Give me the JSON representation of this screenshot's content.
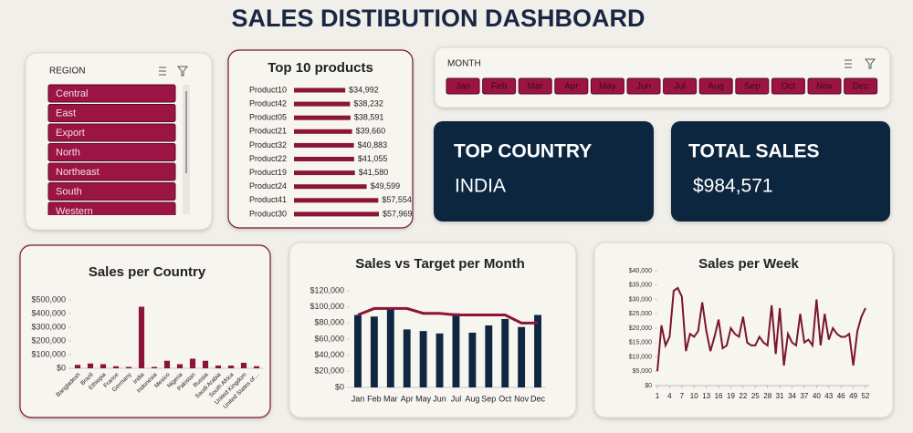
{
  "title": "SALES DISTIBUTION DASHBOARD",
  "region_slicer": {
    "title": "REGION",
    "items": [
      "Central",
      "East",
      "Export",
      "North",
      "Northeast",
      "South",
      "Western"
    ]
  },
  "month_slicer": {
    "title": "MONTH",
    "items": [
      "Jan",
      "Feb",
      "Mar",
      "Apr",
      "May",
      "Jun",
      "Jul",
      "Aug",
      "Sep",
      "Oct",
      "Nov",
      "Dec"
    ]
  },
  "kpis": [
    {
      "label": "TOP COUNTRY",
      "value": "INDIA"
    },
    {
      "label": "TOTAL SALES",
      "value": "$984,571"
    }
  ],
  "chart_data": [
    {
      "type": "hbar",
      "title": "Top 10 products",
      "categories": [
        "Product10",
        "Product42",
        "Product05",
        "Product21",
        "Product32",
        "Product22",
        "Product19",
        "Product24",
        "Product41",
        "Product30"
      ],
      "values": [
        34992,
        38232,
        38591,
        39660,
        40883,
        41055,
        41580,
        49599,
        57554,
        57969
      ],
      "value_labels": [
        "$34,992",
        "$38,232",
        "$38,591",
        "$39,660",
        "$40,883",
        "$41,055",
        "$41,580",
        "$49,599",
        "$57,554",
        "$57,969"
      ],
      "color": "#8b1538"
    },
    {
      "type": "bar",
      "title": "Sales per Country",
      "categories": [
        "Bangladesh",
        "Brazil",
        "Ethiopia",
        "France",
        "Germany",
        "India",
        "Indonesia",
        "Mexico",
        "Nigeria",
        "Pakistan",
        "Russia",
        "Saudi Arabia",
        "South Africa",
        "United Kingdom",
        "United States of…"
      ],
      "values": [
        25000,
        35000,
        30000,
        15000,
        10000,
        450000,
        10000,
        55000,
        30000,
        70000,
        55000,
        20000,
        20000,
        40000,
        15000
      ],
      "color": "#8b1538",
      "ylim": [
        0,
        500000
      ],
      "yticks": [
        {
          "value": 0,
          "label": "$0"
        },
        {
          "value": 100000,
          "label": "$100,000"
        },
        {
          "value": 200000,
          "label": "$200,000"
        },
        {
          "value": 300000,
          "label": "$300,000"
        },
        {
          "value": 400000,
          "label": "$400,000"
        },
        {
          "value": 500000,
          "label": "$500,000"
        }
      ]
    },
    {
      "type": "combo",
      "title": "Sales vs Target per Month",
      "categories": [
        "Jan",
        "Feb",
        "Mar",
        "Apr",
        "May",
        "Jun",
        "Jul",
        "Aug",
        "Sep",
        "Oct",
        "Nov",
        "Dec"
      ],
      "series": [
        {
          "type": "bar",
          "color": "#0f2741",
          "values": [
            90000,
            88000,
            97000,
            72000,
            70000,
            67000,
            92000,
            68000,
            77000,
            85000,
            75000,
            90000
          ]
        },
        {
          "type": "line",
          "color": "#8b1538",
          "values": [
            90000,
            98000,
            98000,
            98000,
            92000,
            92000,
            90000,
            90000,
            90000,
            90000,
            80000,
            80000
          ]
        }
      ],
      "ylim": [
        0,
        120000
      ],
      "yticks": [
        {
          "value": 0,
          "label": "$0"
        },
        {
          "value": 20000,
          "label": "$20,000"
        },
        {
          "value": 40000,
          "label": "$40,000"
        },
        {
          "value": 60000,
          "label": "$60,000"
        },
        {
          "value": 80000,
          "label": "$80,000"
        },
        {
          "value": 100000,
          "label": "$100,000"
        },
        {
          "value": 120000,
          "label": "$120,000"
        }
      ]
    },
    {
      "type": "line",
      "title": "Sales per Week",
      "x": [
        1,
        2,
        3,
        4,
        5,
        6,
        7,
        8,
        9,
        10,
        11,
        12,
        13,
        14,
        15,
        16,
        17,
        18,
        19,
        20,
        21,
        22,
        23,
        24,
        25,
        26,
        27,
        28,
        29,
        30,
        31,
        32,
        33,
        34,
        35,
        36,
        37,
        38,
        39,
        40,
        41,
        42,
        43,
        44,
        45,
        46,
        47,
        48,
        49,
        50,
        51,
        52
      ],
      "values": [
        5000,
        21000,
        14000,
        17000,
        33000,
        34000,
        31000,
        12000,
        18000,
        17000,
        19000,
        29000,
        19000,
        12000,
        17000,
        23000,
        13000,
        14000,
        20000,
        18000,
        17000,
        24000,
        15000,
        14000,
        14000,
        17000,
        15000,
        14000,
        28000,
        11000,
        27000,
        7000,
        18000,
        15000,
        14000,
        25000,
        15000,
        16000,
        14000,
        30000,
        14000,
        25000,
        16000,
        20000,
        18000,
        17000,
        17000,
        18000,
        7000,
        19000,
        24000,
        27000
      ],
      "color": "#7a1530",
      "xlim": [
        1,
        52
      ],
      "xticks": [
        1,
        4,
        7,
        10,
        13,
        16,
        19,
        22,
        25,
        28,
        31,
        34,
        37,
        40,
        43,
        46,
        49,
        52
      ],
      "ylim": [
        0,
        40000
      ],
      "yticks": [
        {
          "value": 0,
          "label": "$0"
        },
        {
          "value": 5000,
          "label": "$5,000"
        },
        {
          "value": 10000,
          "label": "$10,000"
        },
        {
          "value": 15000,
          "label": "$15,000"
        },
        {
          "value": 20000,
          "label": "$20,000"
        },
        {
          "value": 25000,
          "label": "$25,000"
        },
        {
          "value": 30000,
          "label": "$30,000"
        },
        {
          "value": 35000,
          "label": "$35,000"
        },
        {
          "value": 40000,
          "label": "$40,000"
        }
      ]
    }
  ]
}
